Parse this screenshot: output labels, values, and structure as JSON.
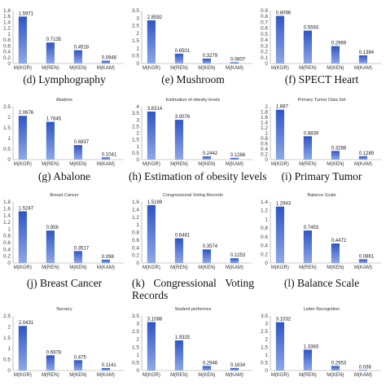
{
  "chart_data": [
    {
      "type": "bar",
      "panel_label": "(d) Lymphography",
      "title": "",
      "categories": [
        "M(KGR)",
        "M(REN)",
        "M(KEN)",
        "M(KAM)"
      ],
      "values": [
        1.5971,
        0.7135,
        0.4518,
        0.0946
      ],
      "value_labels": [
        "1.5971",
        "0.7135",
        "0.4518",
        "0.0946"
      ],
      "ylim": [
        0,
        1.8
      ],
      "yticks": [
        "0",
        "0.2",
        "0.4",
        "0.6",
        "0.8",
        "1",
        "1.2",
        "1.4",
        "1.6",
        "1.8"
      ]
    },
    {
      "type": "bar",
      "panel_label": "(e) Mushroom",
      "title": "",
      "categories": [
        "M(KGR)",
        "M(REN)",
        "M(KEN)",
        "M(KAM)"
      ],
      "values": [
        2.8592,
        0.6501,
        0.3279,
        0.0807
      ],
      "value_labels": [
        "2.8592",
        "0.6501",
        "0.3279",
        "0.0807"
      ],
      "ylim": [
        0,
        3.5
      ],
      "yticks": [
        "0",
        "0.5",
        "1",
        "1.5",
        "2",
        "2.5",
        "3",
        "3.5"
      ]
    },
    {
      "type": "bar",
      "panel_label": "(f) SPECT Heart",
      "title": "",
      "categories": [
        "M(KGR)",
        "M(REN)",
        "M(KEN)",
        "M(KAM)"
      ],
      "values": [
        0.8096,
        0.5593,
        0.2969,
        0.1384
      ],
      "value_labels": [
        "0.8096",
        "0.5593",
        "0.2969",
        "0.1384"
      ],
      "ylim": [
        0,
        0.9
      ],
      "yticks": [
        "0",
        "0.1",
        "0.2",
        "0.3",
        "0.4",
        "0.5",
        "0.6",
        "0.7",
        "0.8",
        "0.9"
      ]
    },
    {
      "type": "bar",
      "panel_label": "(g) Abalone",
      "title": "Abalone",
      "categories": [
        "M(KGR)",
        "M(REN)",
        "M(KEN)",
        "M(KAM)"
      ],
      "values": [
        2.0676,
        1.7845,
        0.6837,
        0.1041
      ],
      "value_labels": [
        "2.0676",
        "1.7845",
        "0.6837",
        "0.1041"
      ],
      "ylim": [
        0,
        2.5
      ],
      "yticks": [
        "0",
        "0.5",
        "1",
        "1.5",
        "2",
        "2.5"
      ]
    },
    {
      "type": "bar",
      "panel_label": "(h) Estimation of obesity levels",
      "title": "Estimation of obesity levels",
      "categories": [
        "M(KGR)",
        "M(REN)",
        "M(KEN)",
        "M(KAM)"
      ],
      "values": [
        3.6314,
        3.0076,
        0.2442,
        0.1288
      ],
      "value_labels": [
        "3.6314",
        "3.0076",
        "0.2442",
        "0.1288"
      ],
      "ylim": [
        0,
        4
      ],
      "yticks": [
        "0",
        "0.5",
        "1",
        "1.5",
        "2",
        "2.5",
        "3",
        "3.5",
        "4"
      ]
    },
    {
      "type": "bar",
      "panel_label": "(i) Primary Tumor",
      "title": "Primary Tumor Data Set",
      "categories": [
        "M(KGR)",
        "M(REN)",
        "M(KEN)",
        "M(KAM)"
      ],
      "values": [
        1.887,
        0.8839,
        0.3288,
        0.1289
      ],
      "value_labels": [
        "1.887",
        "0.8839",
        "0.3288",
        "0.1289"
      ],
      "ylim": [
        0,
        2
      ],
      "yticks": [
        "0",
        "0.2",
        "0.4",
        "0.6",
        "0.8",
        "1",
        "1.2",
        "1.4",
        "1.6",
        "1.8",
        "2"
      ]
    },
    {
      "type": "bar",
      "panel_label": "(j) Breast Cancer",
      "title": "Breast Cancer",
      "categories": [
        "M(KGR)",
        "M(REN)",
        "M(KEN)",
        "M(KAM)"
      ],
      "values": [
        1.5247,
        0.956,
        0.3517,
        0.098
      ],
      "value_labels": [
        "1.5247",
        "0.956",
        "0.3517",
        "0.098"
      ],
      "ylim": [
        0,
        1.8
      ],
      "yticks": [
        "0",
        "0.2",
        "0.4",
        "0.6",
        "0.8",
        "1",
        "1.2",
        "1.4",
        "1.6",
        "1.8"
      ]
    },
    {
      "type": "bar",
      "panel_label": "(k) Congressional Voting Records",
      "title": "Congressional Voting Records",
      "categories": [
        "M(KGR)",
        "M(REN)",
        "M(KEN)",
        "M(KAM)"
      ],
      "values": [
        1.5189,
        0.6481,
        0.3574,
        0.1253
      ],
      "value_labels": [
        "1.5189",
        "0.6481",
        "0.3574",
        "0.1253"
      ],
      "ylim": [
        0,
        1.6
      ],
      "yticks": [
        "0",
        "0.2",
        "0.4",
        "0.6",
        "0.8",
        "1",
        "1.2",
        "1.4",
        "1.6"
      ]
    },
    {
      "type": "bar",
      "panel_label": "(l) Balance Scale",
      "title": "Balance Scale",
      "categories": [
        "M(KGR)",
        "M(REN)",
        "M(KEN)",
        "M(KAM)"
      ],
      "values": [
        1.2943,
        0.7453,
        0.4472,
        0.0861
      ],
      "value_labels": [
        "1.2943",
        "0.7453",
        "0.4472",
        "0.0861"
      ],
      "ylim": [
        0,
        1.4
      ],
      "yticks": [
        "0",
        "0.2",
        "0.4",
        "0.6",
        "0.8",
        "1",
        "1.2",
        "1.4"
      ]
    },
    {
      "type": "bar",
      "panel_label": "",
      "title": "Nursery",
      "categories": [
        "M(KGR)",
        "M(REN)",
        "M(KEN)",
        "M(KAM)"
      ],
      "values": [
        2.0431,
        0.6978,
        0.475,
        0.1141
      ],
      "value_labels": [
        "2.0431",
        "0.6978",
        "0.475",
        "0.1141"
      ],
      "ylim": [
        0,
        2.5
      ],
      "yticks": [
        "0",
        "0.5",
        "1",
        "1.5",
        "2",
        "2.5"
      ]
    },
    {
      "type": "bar",
      "panel_label": "",
      "title": "Student performce",
      "categories": [
        "M(KGR)",
        "M(REN)",
        "M(KEN)",
        "M(KAM)"
      ],
      "values": [
        3.1088,
        1.9325,
        0.2946,
        0.1634
      ],
      "value_labels": [
        "3.1088",
        "1.9325",
        "0.2946",
        "0.1634"
      ],
      "ylim": [
        0,
        3.5
      ],
      "yticks": [
        "0",
        "0.5",
        "1",
        "1.5",
        "2",
        "2.5",
        "3",
        "3.5"
      ]
    },
    {
      "type": "bar",
      "panel_label": "",
      "title": "Letter Recognition",
      "categories": [
        "M(KGR)",
        "M(REN)",
        "M(KEN)",
        "M(KAM)"
      ],
      "values": [
        3.1032,
        1.3383,
        0.2953,
        0.038
      ],
      "value_labels": [
        "3.1032",
        "1.3383",
        "0.2953",
        "0.038"
      ],
      "ylim": [
        0,
        3.5
      ],
      "yticks": [
        "0",
        "0.5",
        "1",
        "1.5",
        "2",
        "2.5",
        "3",
        "3.5"
      ]
    }
  ],
  "colors": {
    "bar_top": "#2f55c4",
    "bar_bottom": "#8fa8e6",
    "axis": "#999999",
    "text": "#222222"
  }
}
